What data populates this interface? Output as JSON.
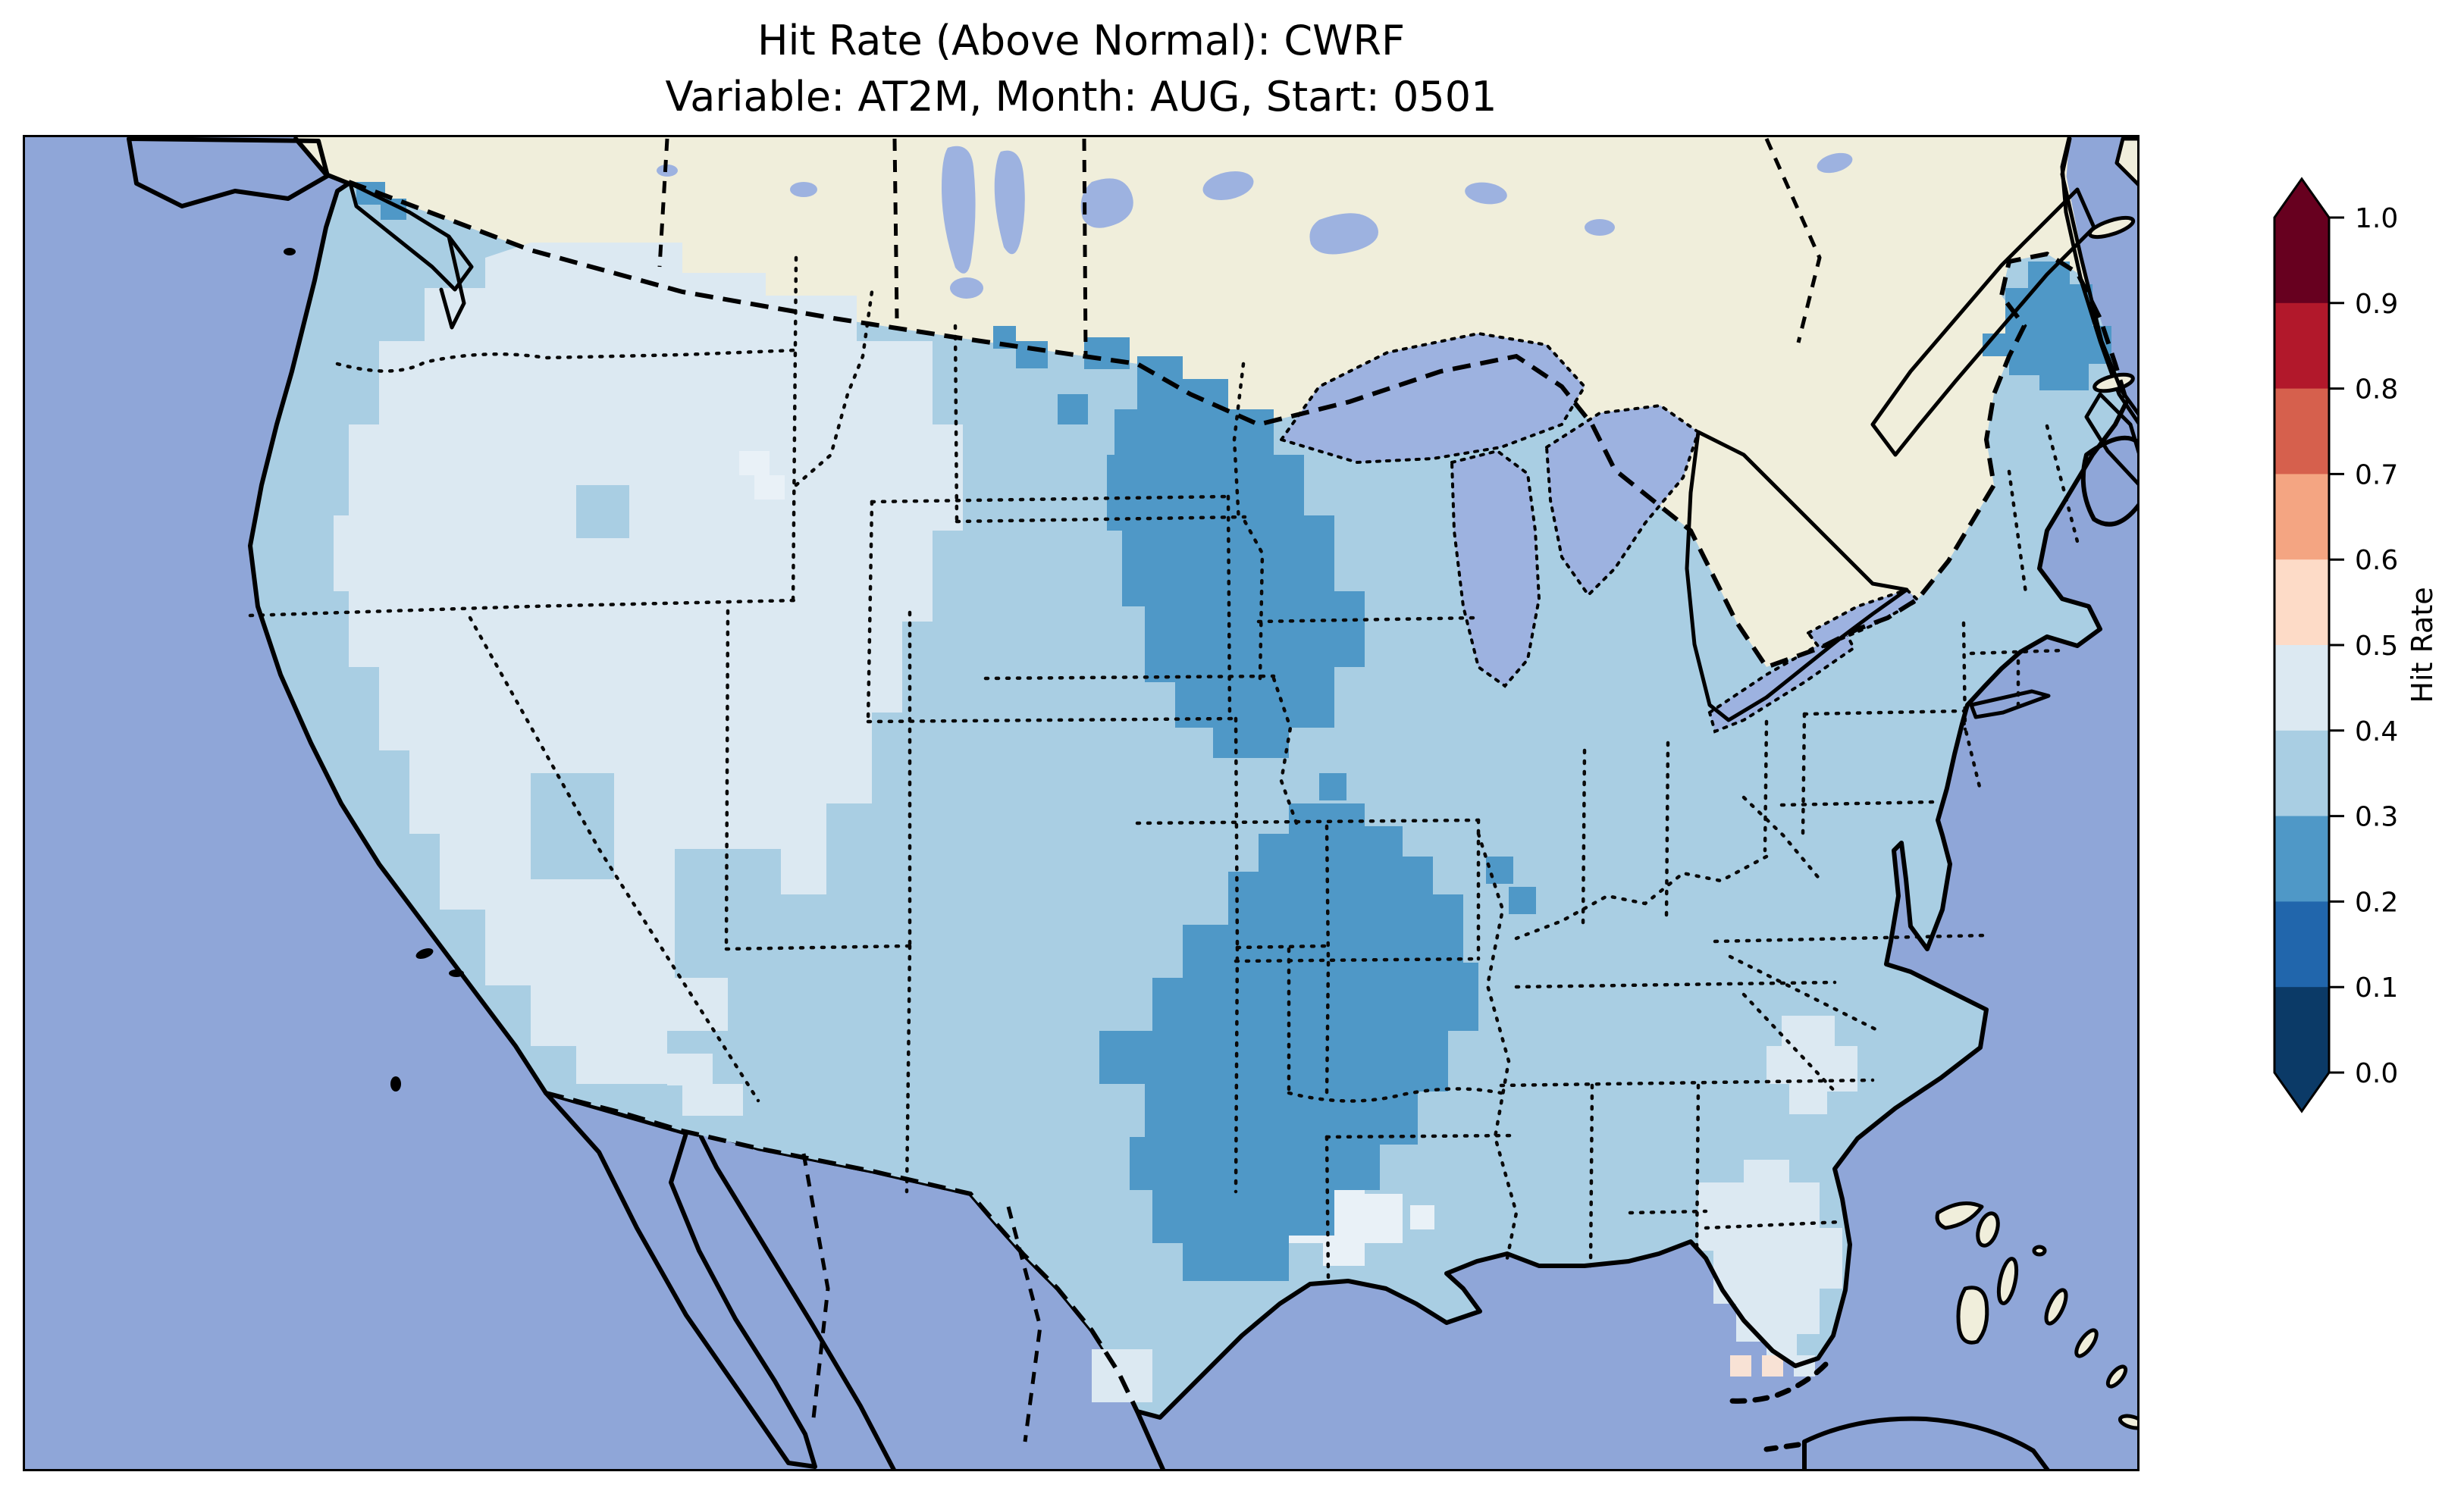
{
  "title": {
    "line1": "Hit Rate (Above Normal): CWRF",
    "line2": "Variable: AT2M, Month: AUG, Start: 0501"
  },
  "colorbar": {
    "label": "Hit Rate",
    "tick_labels": [
      "1.0",
      "0.9",
      "0.8",
      "0.7",
      "0.6",
      "0.5",
      "0.4",
      "0.3",
      "0.2",
      "0.1",
      "0.0"
    ],
    "bands_top_to_bottom": [
      "#67001f",
      "#b2182b",
      "#d6604d",
      "#f4a582",
      "#fddbc7",
      "#dce9f2",
      "#a9cee3",
      "#4f98c7",
      "#2166ac",
      "#0b3a67"
    ],
    "extend_over": "#67001f",
    "extend_under": "#0b3a67"
  },
  "map": {
    "colors": {
      "ocean": "#8fa6d8",
      "lake": "#9db2e0",
      "land": "#f0eedb",
      "bin_02_03": "#4f98c7",
      "bin_03_04": "#a9cee3",
      "bin_04_05": "#dce9f2",
      "bin_04_05_bright": "#e9f1f7",
      "bin_05_06": "#f8e2d5",
      "frame": "#000000"
    }
  },
  "chart_data": {
    "type": "heatmap",
    "title": "Hit Rate (Above Normal): CWRF",
    "subtitle": "Variable: AT2M, Month: AUG, Start: 0501",
    "variable": "AT2M",
    "month": "AUG",
    "start": "0501",
    "model": "CWRF",
    "colorbar": {
      "label": "Hit Rate",
      "ticks": [
        0.0,
        0.1,
        0.2,
        0.3,
        0.4,
        0.5,
        0.6,
        0.7,
        0.8,
        0.9,
        1.0
      ],
      "range": [
        0.0,
        1.0
      ],
      "bins": 10,
      "colormap": "RdBu_r discrete (blue = low, red = high)",
      "extend": "both"
    },
    "geography": "Contiguous United States gridded hit-rate field; Canada, Mexico and Caribbean shown as no-data land",
    "regions": [
      {
        "area": "Most of CONUS (default)",
        "hit_rate_bin": "0.3-0.4"
      },
      {
        "area": "Western interior (W Washington, W Oregon, Nevada, Utah, S Idaho, SW Montana, W Colorado, N Arizona)",
        "hit_rate_bin": "0.4-0.5"
      },
      {
        "area": "Minnesota / Wisconsin / NE Iowa",
        "hit_rate_bin": "0.2-0.3"
      },
      {
        "area": "E Texas / Oklahoma / Arkansas / SE Missouri / W Mississippi",
        "hit_rate_bin": "0.2-0.3"
      },
      {
        "area": "Northern Maine",
        "hit_rate_bin": "0.2-0.3"
      },
      {
        "area": "Few cells at Washington / British Columbia border",
        "hit_rate_bin": "0.2-0.3"
      },
      {
        "area": "Florida peninsula",
        "hit_rate_bin": "0.4-0.5"
      },
      {
        "area": "Coastal Georgia",
        "hit_rate_bin": "0.4-0.5"
      },
      {
        "area": "Louisiana coast near New Orleans",
        "hit_rate_bin": "0.4-0.5"
      },
      {
        "area": "South Texas tip",
        "hit_rate_bin": "0.4-0.5"
      },
      {
        "area": "Two cells south of the Florida Keys",
        "hit_rate_bin": "0.5-0.6"
      }
    ]
  }
}
